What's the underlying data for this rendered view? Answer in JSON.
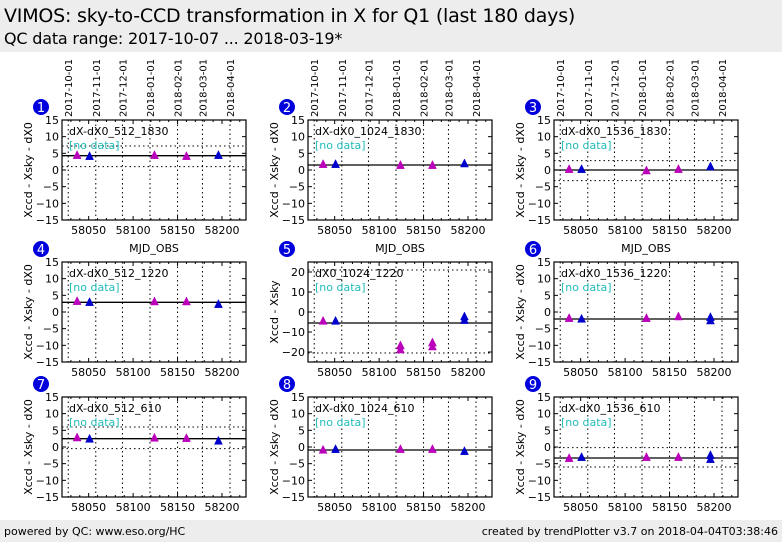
{
  "header": {
    "title": "VIMOS: sky-to-CCD transformation in X for Q1 (last 180 days)",
    "subtitle": "QC data range: 2017-10-07 ... 2018-03-19*"
  },
  "footer": {
    "left": "powered by QC: www.eso.org/HC",
    "right": "created by trendPlotter v3.7 on 2018-04-04T03:38:46"
  },
  "colors": {
    "series_magenta": "#bb00bb",
    "series_blue": "#0000cc",
    "no_data": "#22bbbb",
    "badge": "#0000dd"
  },
  "chart_data": {
    "type": "scatter",
    "xlabel": "MJD_OBS",
    "xlim": [
      58020,
      58227
    ],
    "x_ticks": [
      58050,
      58100,
      58150,
      58200
    ],
    "x_tick_labels": [
      "58050",
      "58100",
      "58150",
      "58200"
    ],
    "top_axis_dates": [
      {
        "label": "2017-10-01",
        "mjd": 58027
      },
      {
        "label": "2017-11-01",
        "mjd": 58058
      },
      {
        "label": "2017-12-01",
        "mjd": 58088
      },
      {
        "label": "2018-01-01",
        "mjd": 58119
      },
      {
        "label": "2018-02-01",
        "mjd": 58150
      },
      {
        "label": "2018-03-01",
        "mjd": 58178
      },
      {
        "label": "2018-04-01",
        "mjd": 58209
      }
    ],
    "no_data_label": "[no data]",
    "panels": [
      {
        "number": "1",
        "name": "dX-dX0_512_1830",
        "ylabel": "Xccd - Xsky - dX0",
        "ylim": [
          -15,
          15
        ],
        "yticks": [
          15,
          10,
          5,
          0,
          -5,
          -10,
          -15
        ],
        "ytick_labels": [
          "15",
          "10",
          "5",
          "0",
          "−5",
          "−10",
          "−15"
        ],
        "mean": 4.3,
        "dotted": [
          7.2,
          1.0
        ],
        "show_top_dates": true,
        "show_xlabel": true,
        "series": [
          {
            "name": "magenta",
            "points": [
              [
                58037,
                4.3
              ],
              [
                58124,
                4.3
              ],
              [
                58160,
                4.0
              ]
            ]
          },
          {
            "name": "blue",
            "points": [
              [
                58051,
                4.0
              ],
              [
                58196,
                4.3
              ]
            ]
          }
        ]
      },
      {
        "number": "2",
        "name": "dX-dX0_1024_1830",
        "ylabel": "Xccd - Xsky - dX0",
        "ylim": [
          -15,
          15
        ],
        "yticks": [
          15,
          10,
          5,
          0,
          -5,
          -10,
          -15
        ],
        "ytick_labels": [
          "15",
          "10",
          "5",
          "0",
          "−5",
          "−10",
          "−15"
        ],
        "mean": 1.5,
        "dotted": [],
        "show_top_dates": true,
        "show_xlabel": true,
        "series": [
          {
            "name": "magenta",
            "points": [
              [
                58037,
                1.6
              ],
              [
                58124,
                1.3
              ],
              [
                58160,
                1.3
              ]
            ]
          },
          {
            "name": "blue",
            "points": [
              [
                58051,
                1.6
              ],
              [
                58196,
                1.8
              ]
            ]
          }
        ]
      },
      {
        "number": "3",
        "name": "dX-dX0_1536_1830",
        "ylabel": "Xccd - Xsky - dX0",
        "ylim": [
          -15,
          15
        ],
        "yticks": [
          15,
          10,
          5,
          0,
          -5,
          -10,
          -15
        ],
        "ytick_labels": [
          "15",
          "10",
          "5",
          "0",
          "−5",
          "−10",
          "−15"
        ],
        "mean": 0.0,
        "dotted": [
          2.8,
          -3.2
        ],
        "show_top_dates": true,
        "show_xlabel": true,
        "series": [
          {
            "name": "magenta",
            "points": [
              [
                58037,
                0.1
              ],
              [
                58124,
                -0.3
              ],
              [
                58160,
                0.1
              ]
            ]
          },
          {
            "name": "blue",
            "points": [
              [
                58051,
                0.1
              ],
              [
                58196,
                0.9
              ]
            ]
          }
        ]
      },
      {
        "number": "4",
        "name": "dX-dX0_512_1220",
        "ylabel": "Xccd - Xsky - dX0",
        "ylim": [
          -15,
          15
        ],
        "yticks": [
          15,
          10,
          5,
          0,
          -5,
          -10,
          -15
        ],
        "ytick_labels": [
          "15",
          "10",
          "5",
          "0",
          "−5",
          "−10",
          "−15"
        ],
        "mean": 2.9,
        "dotted": [],
        "show_top_dates": false,
        "show_xlabel": false,
        "series": [
          {
            "name": "magenta",
            "points": [
              [
                58037,
                3.1
              ],
              [
                58124,
                3.0
              ],
              [
                58160,
                3.0
              ]
            ]
          },
          {
            "name": "blue",
            "points": [
              [
                58051,
                2.8
              ],
              [
                58196,
                2.2
              ]
            ]
          }
        ]
      },
      {
        "number": "5",
        "name": "dX0_1024_1220",
        "ylabel": "Xccd - Xsky",
        "ylim": [
          -25,
          25
        ],
        "yticks": [
          20,
          10,
          0,
          -10,
          -20
        ],
        "ytick_labels": [
          "20",
          "10",
          "0",
          "−10",
          "−20"
        ],
        "mean": -5.5,
        "dotted": [
          21,
          -20.5
        ],
        "show_top_dates": false,
        "show_xlabel": false,
        "series": [
          {
            "name": "magenta",
            "points": [
              [
                58037,
                -4.7
              ],
              [
                58124,
                -17.0
              ],
              [
                58124,
                -19.0
              ],
              [
                58160,
                -15.5
              ],
              [
                58160,
                -17.5
              ]
            ]
          },
          {
            "name": "blue",
            "points": [
              [
                58051,
                -4.7
              ],
              [
                58196,
                -2.5
              ],
              [
                58196,
                -4.3
              ]
            ]
          }
        ]
      },
      {
        "number": "6",
        "name": "dX-dX0_1536_1220",
        "ylabel": "Xccd - Xsky - dX0",
        "ylim": [
          -15,
          15
        ],
        "yticks": [
          15,
          10,
          5,
          0,
          -5,
          -10,
          -15
        ],
        "ytick_labels": [
          "15",
          "10",
          "5",
          "0",
          "−5",
          "−10",
          "−15"
        ],
        "mean": -2.1,
        "dotted": [],
        "show_top_dates": false,
        "show_xlabel": false,
        "series": [
          {
            "name": "magenta",
            "points": [
              [
                58037,
                -2.0
              ],
              [
                58124,
                -2.0
              ],
              [
                58160,
                -1.5
              ]
            ]
          },
          {
            "name": "blue",
            "points": [
              [
                58051,
                -2.2
              ],
              [
                58196,
                -1.7
              ],
              [
                58196,
                -2.7
              ]
            ]
          }
        ]
      },
      {
        "number": "7",
        "name": "dX-dX0_512_610",
        "ylabel": "Xccd - Xsky - dX0",
        "ylim": [
          -15,
          15
        ],
        "yticks": [
          15,
          10,
          5,
          0,
          -5,
          -10,
          -15
        ],
        "ytick_labels": [
          "15",
          "10",
          "5",
          "0",
          "−5",
          "−10",
          "−15"
        ],
        "mean": 2.5,
        "dotted": [
          6.0,
          -0.5
        ],
        "show_top_dates": false,
        "show_xlabel": false,
        "series": [
          {
            "name": "magenta",
            "points": [
              [
                58037,
                2.7
              ],
              [
                58124,
                2.6
              ],
              [
                58160,
                2.5
              ]
            ]
          },
          {
            "name": "blue",
            "points": [
              [
                58051,
                2.3
              ],
              [
                58196,
                1.7
              ]
            ]
          }
        ]
      },
      {
        "number": "8",
        "name": "dX-dX0_1024_610",
        "ylabel": "Xccd - Xsky - dX0",
        "ylim": [
          -15,
          15
        ],
        "yticks": [
          15,
          10,
          5,
          0,
          -5,
          -10,
          -15
        ],
        "ytick_labels": [
          "15",
          "10",
          "5",
          "0",
          "−5",
          "−10",
          "−15"
        ],
        "mean": -0.9,
        "dotted": [],
        "show_top_dates": false,
        "show_xlabel": false,
        "series": [
          {
            "name": "magenta",
            "points": [
              [
                58037,
                -1.0
              ],
              [
                58124,
                -0.8
              ],
              [
                58160,
                -0.8
              ]
            ]
          },
          {
            "name": "blue",
            "points": [
              [
                58051,
                -0.8
              ],
              [
                58196,
                -1.4
              ]
            ]
          }
        ]
      },
      {
        "number": "9",
        "name": "dX-dX0_1536_610",
        "ylabel": "Xccd - Xsky - dX0",
        "ylim": [
          -15,
          15
        ],
        "yticks": [
          15,
          10,
          5,
          0,
          -5,
          -10,
          -15
        ],
        "ytick_labels": [
          "15",
          "10",
          "5",
          "0",
          "−5",
          "−10",
          "−15"
        ],
        "mean": -3.3,
        "dotted": [
          -0.2,
          -6.0
        ],
        "show_top_dates": false,
        "show_xlabel": false,
        "series": [
          {
            "name": "magenta",
            "points": [
              [
                58037,
                -3.5
              ],
              [
                58124,
                -3.2
              ],
              [
                58160,
                -3.2
              ]
            ]
          },
          {
            "name": "blue",
            "points": [
              [
                58051,
                -3.2
              ],
              [
                58196,
                -2.6
              ],
              [
                58196,
                -3.8
              ]
            ]
          }
        ]
      }
    ]
  }
}
